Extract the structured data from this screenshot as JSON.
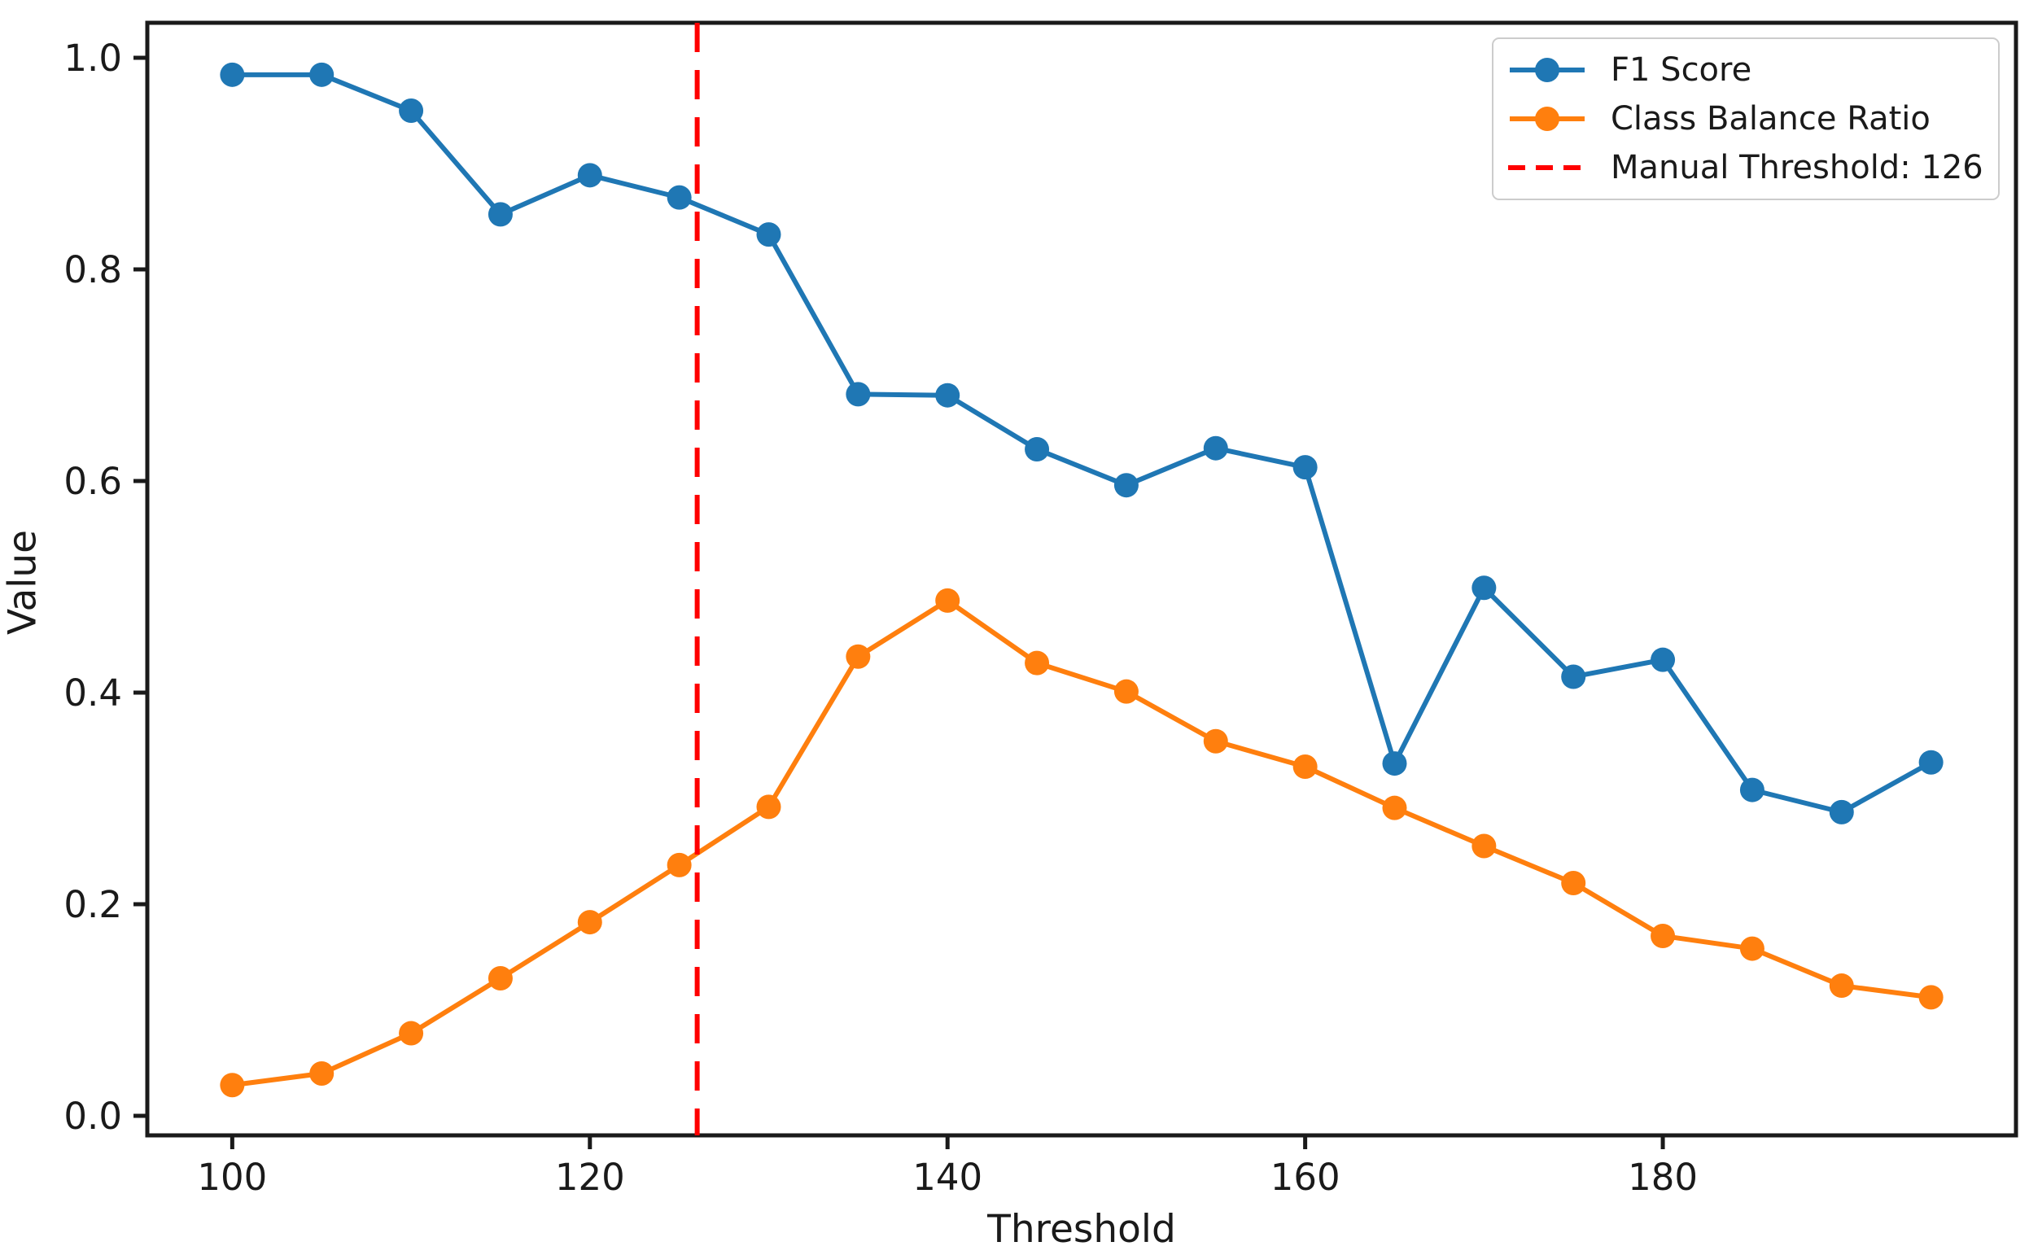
{
  "chart_data": {
    "type": "line",
    "title": "",
    "xlabel": "Threshold",
    "ylabel": "Value",
    "x": [
      100,
      105,
      110,
      115,
      120,
      125,
      130,
      135,
      140,
      145,
      150,
      155,
      160,
      165,
      170,
      175,
      180,
      185,
      190,
      195
    ],
    "series": [
      {
        "name": "F1 Score",
        "color": "#1f77b4",
        "marker": "circle",
        "values": [
          0.984,
          0.984,
          0.95,
          0.852,
          0.889,
          0.868,
          0.833,
          0.682,
          0.681,
          0.63,
          0.596,
          0.631,
          0.613,
          0.333,
          0.499,
          0.415,
          0.431,
          0.308,
          0.287,
          0.334
        ]
      },
      {
        "name": "Class Balance Ratio",
        "color": "#ff7f0e",
        "marker": "circle",
        "values": [
          0.029,
          0.04,
          0.078,
          0.13,
          0.183,
          0.237,
          0.292,
          0.434,
          0.487,
          0.428,
          0.401,
          0.354,
          0.33,
          0.291,
          0.255,
          0.22,
          0.17,
          0.158,
          0.123,
          0.112
        ]
      }
    ],
    "threshold_line": {
      "label": "Manual Threshold: 126",
      "x": 126,
      "color": "#ff0000",
      "style": "dashed"
    },
    "xticks": [
      100,
      120,
      140,
      160,
      180
    ],
    "yticks": [
      0.0,
      0.2,
      0.4,
      0.6,
      0.8,
      1.0
    ],
    "xlim": [
      95.25,
      199.75
    ],
    "ylim": [
      -0.0185,
      1.0331
    ],
    "grid": false,
    "legend_position": "upper right",
    "axis_color": "#1a1a1a",
    "text_color": "#1a1a1a",
    "background_color": "#ffffff"
  }
}
